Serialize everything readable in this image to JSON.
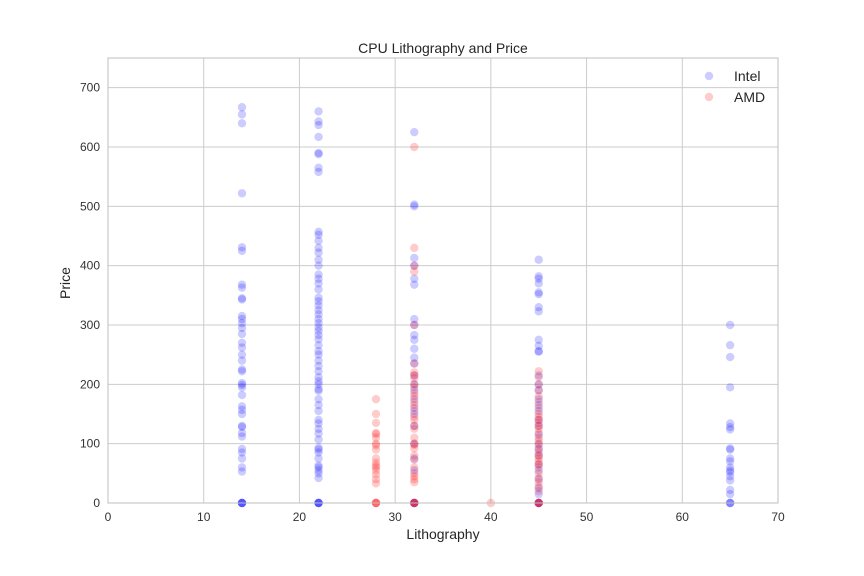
{
  "chart_data": {
    "type": "scatter",
    "title": "CPU Lithography and Price",
    "xlabel": "Lithography",
    "ylabel": "Price",
    "xlim": [
      0,
      70
    ],
    "ylim": [
      0,
      750
    ],
    "xticks": [
      0,
      10,
      20,
      30,
      40,
      50,
      60,
      70
    ],
    "yticks": [
      0,
      100,
      200,
      300,
      400,
      500,
      600,
      700
    ],
    "grid": true,
    "legend_position": "top-right",
    "series": [
      {
        "name": "Intel",
        "color": "#0000ff",
        "opacity": 0.2,
        "points": [
          [
            14,
            0
          ],
          [
            14,
            0
          ],
          [
            14,
            0
          ],
          [
            14,
            0
          ],
          [
            14,
            0
          ],
          [
            14,
            53
          ],
          [
            14,
            60
          ],
          [
            14,
            75
          ],
          [
            14,
            85
          ],
          [
            14,
            91
          ],
          [
            14,
            112
          ],
          [
            14,
            118
          ],
          [
            14,
            128
          ],
          [
            14,
            130
          ],
          [
            14,
            150
          ],
          [
            14,
            157
          ],
          [
            14,
            163
          ],
          [
            14,
            182
          ],
          [
            14,
            195
          ],
          [
            14,
            199
          ],
          [
            14,
            202
          ],
          [
            14,
            222
          ],
          [
            14,
            225
          ],
          [
            14,
            240
          ],
          [
            14,
            250
          ],
          [
            14,
            262
          ],
          [
            14,
            270
          ],
          [
            14,
            285
          ],
          [
            14,
            295
          ],
          [
            14,
            303
          ],
          [
            14,
            310
          ],
          [
            14,
            315
          ],
          [
            14,
            343
          ],
          [
            14,
            345
          ],
          [
            14,
            363
          ],
          [
            14,
            368
          ],
          [
            14,
            425
          ],
          [
            14,
            431
          ],
          [
            14,
            522
          ],
          [
            14,
            640
          ],
          [
            14,
            655
          ],
          [
            14,
            667
          ],
          [
            22,
            0
          ],
          [
            22,
            0
          ],
          [
            22,
            0
          ],
          [
            22,
            0
          ],
          [
            22,
            0
          ],
          [
            22,
            42
          ],
          [
            22,
            50
          ],
          [
            22,
            55
          ],
          [
            22,
            60
          ],
          [
            22,
            63
          ],
          [
            22,
            75
          ],
          [
            22,
            85
          ],
          [
            22,
            90
          ],
          [
            22,
            93
          ],
          [
            22,
            107
          ],
          [
            22,
            117
          ],
          [
            22,
            125
          ],
          [
            22,
            134
          ],
          [
            22,
            140
          ],
          [
            22,
            155
          ],
          [
            22,
            165
          ],
          [
            22,
            175
          ],
          [
            22,
            189
          ],
          [
            22,
            192
          ],
          [
            22,
            200
          ],
          [
            22,
            205
          ],
          [
            22,
            212
          ],
          [
            22,
            222
          ],
          [
            22,
            231
          ],
          [
            22,
            240
          ],
          [
            22,
            250
          ],
          [
            22,
            256
          ],
          [
            22,
            266
          ],
          [
            22,
            276
          ],
          [
            22,
            283
          ],
          [
            22,
            290
          ],
          [
            22,
            296
          ],
          [
            22,
            303
          ],
          [
            22,
            310
          ],
          [
            22,
            318
          ],
          [
            22,
            325
          ],
          [
            22,
            333
          ],
          [
            22,
            340
          ],
          [
            22,
            346
          ],
          [
            22,
            360
          ],
          [
            22,
            370
          ],
          [
            22,
            378
          ],
          [
            22,
            385
          ],
          [
            22,
            400
          ],
          [
            22,
            410
          ],
          [
            22,
            422
          ],
          [
            22,
            430
          ],
          [
            22,
            442
          ],
          [
            22,
            452
          ],
          [
            22,
            457
          ],
          [
            22,
            558
          ],
          [
            22,
            565
          ],
          [
            22,
            588
          ],
          [
            22,
            590
          ],
          [
            22,
            617
          ],
          [
            22,
            637
          ],
          [
            22,
            643
          ],
          [
            22,
            660
          ],
          [
            32,
            0
          ],
          [
            32,
            0
          ],
          [
            32,
            0
          ],
          [
            32,
            55
          ],
          [
            32,
            75
          ],
          [
            32,
            100
          ],
          [
            32,
            130
          ],
          [
            32,
            150
          ],
          [
            32,
            160
          ],
          [
            32,
            175
          ],
          [
            32,
            190
          ],
          [
            32,
            200
          ],
          [
            32,
            215
          ],
          [
            32,
            235
          ],
          [
            32,
            245
          ],
          [
            32,
            260
          ],
          [
            32,
            275
          ],
          [
            32,
            283
          ],
          [
            32,
            300
          ],
          [
            32,
            310
          ],
          [
            32,
            368
          ],
          [
            32,
            378
          ],
          [
            32,
            400
          ],
          [
            32,
            413
          ],
          [
            32,
            500
          ],
          [
            32,
            503
          ],
          [
            32,
            625
          ],
          [
            45,
            0
          ],
          [
            45,
            0
          ],
          [
            45,
            0
          ],
          [
            45,
            15
          ],
          [
            45,
            25
          ],
          [
            45,
            40
          ],
          [
            45,
            55
          ],
          [
            45,
            65
          ],
          [
            45,
            80
          ],
          [
            45,
            90
          ],
          [
            45,
            100
          ],
          [
            45,
            115
          ],
          [
            45,
            130
          ],
          [
            45,
            140
          ],
          [
            45,
            155
          ],
          [
            45,
            165
          ],
          [
            45,
            175
          ],
          [
            45,
            190
          ],
          [
            45,
            200
          ],
          [
            45,
            215
          ],
          [
            45,
            255
          ],
          [
            45,
            256
          ],
          [
            45,
            265
          ],
          [
            45,
            275
          ],
          [
            45,
            323
          ],
          [
            45,
            330
          ],
          [
            45,
            352
          ],
          [
            45,
            355
          ],
          [
            45,
            370
          ],
          [
            45,
            378
          ],
          [
            45,
            382
          ],
          [
            45,
            410
          ],
          [
            65,
            0
          ],
          [
            65,
            0
          ],
          [
            65,
            0
          ],
          [
            65,
            15
          ],
          [
            65,
            22
          ],
          [
            65,
            38
          ],
          [
            65,
            45
          ],
          [
            65,
            52
          ],
          [
            65,
            55
          ],
          [
            65,
            60
          ],
          [
            65,
            70
          ],
          [
            65,
            75
          ],
          [
            65,
            90
          ],
          [
            65,
            92
          ],
          [
            65,
            124
          ],
          [
            65,
            128
          ],
          [
            65,
            134
          ],
          [
            65,
            195
          ],
          [
            65,
            246
          ],
          [
            65,
            266
          ],
          [
            65,
            300
          ]
        ]
      },
      {
        "name": "AMD",
        "color": "#ff0000",
        "opacity": 0.2,
        "points": [
          [
            28,
            0
          ],
          [
            28,
            0
          ],
          [
            28,
            0
          ],
          [
            28,
            0
          ],
          [
            28,
            33
          ],
          [
            28,
            40
          ],
          [
            28,
            48
          ],
          [
            28,
            55
          ],
          [
            28,
            60
          ],
          [
            28,
            63
          ],
          [
            28,
            68
          ],
          [
            28,
            75
          ],
          [
            28,
            90
          ],
          [
            28,
            97
          ],
          [
            28,
            100
          ],
          [
            28,
            110
          ],
          [
            28,
            116
          ],
          [
            28,
            118
          ],
          [
            28,
            135
          ],
          [
            28,
            150
          ],
          [
            28,
            175
          ],
          [
            32,
            0
          ],
          [
            32,
            0
          ],
          [
            32,
            0
          ],
          [
            32,
            0
          ],
          [
            32,
            35
          ],
          [
            32,
            40
          ],
          [
            32,
            45
          ],
          [
            32,
            50
          ],
          [
            32,
            60
          ],
          [
            32,
            73
          ],
          [
            32,
            80
          ],
          [
            32,
            92
          ],
          [
            32,
            98
          ],
          [
            32,
            100
          ],
          [
            32,
            110
          ],
          [
            32,
            125
          ],
          [
            32,
            130
          ],
          [
            32,
            140
          ],
          [
            32,
            145
          ],
          [
            32,
            155
          ],
          [
            32,
            165
          ],
          [
            32,
            170
          ],
          [
            32,
            180
          ],
          [
            32,
            185
          ],
          [
            32,
            195
          ],
          [
            32,
            200
          ],
          [
            32,
            210
          ],
          [
            32,
            215
          ],
          [
            32,
            220
          ],
          [
            32,
            235
          ],
          [
            32,
            300
          ],
          [
            32,
            390
          ],
          [
            32,
            400
          ],
          [
            32,
            430
          ],
          [
            32,
            600
          ],
          [
            40,
            0
          ],
          [
            45,
            0
          ],
          [
            45,
            0
          ],
          [
            45,
            0
          ],
          [
            45,
            0
          ],
          [
            45,
            20
          ],
          [
            45,
            28
          ],
          [
            45,
            35
          ],
          [
            45,
            42
          ],
          [
            45,
            50
          ],
          [
            45,
            60
          ],
          [
            45,
            65
          ],
          [
            45,
            70
          ],
          [
            45,
            75
          ],
          [
            45,
            80
          ],
          [
            45,
            85
          ],
          [
            45,
            92
          ],
          [
            45,
            98
          ],
          [
            45,
            105
          ],
          [
            45,
            110
          ],
          [
            45,
            118
          ],
          [
            45,
            125
          ],
          [
            45,
            130
          ],
          [
            45,
            135
          ],
          [
            45,
            140
          ],
          [
            45,
            145
          ],
          [
            45,
            150
          ],
          [
            45,
            160
          ],
          [
            45,
            170
          ],
          [
            45,
            180
          ],
          [
            45,
            190
          ],
          [
            45,
            200
          ],
          [
            45,
            212
          ],
          [
            45,
            222
          ]
        ]
      }
    ]
  }
}
